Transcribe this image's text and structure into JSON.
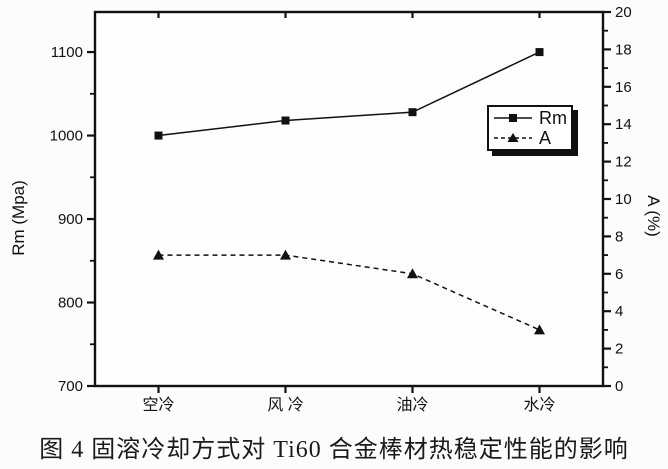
{
  "figure": {
    "caption": "图 4 固溶冷却方式对 Ti60 合金棒材热稳定性能的影响"
  },
  "colors": {
    "foreground": "#111111",
    "background": "#fcfcfc",
    "plot_background": "#fefefe"
  },
  "legend": {
    "entries": [
      {
        "label": "Rm",
        "line": "solid",
        "marker": "square"
      },
      {
        "label": "A",
        "line": "dashed",
        "marker": "triangle"
      }
    ]
  },
  "chart_data": {
    "type": "line",
    "title": "",
    "categories": [
      "空冷",
      "风 冷",
      "油冷",
      "水冷"
    ],
    "series": [
      {
        "name": "Rm",
        "axis": "left",
        "line": "solid",
        "marker": "square",
        "values": [
          1000,
          1018,
          1028,
          1100
        ]
      },
      {
        "name": "A",
        "axis": "right",
        "line": "dashed",
        "marker": "triangle",
        "values": [
          7,
          7,
          6,
          3
        ]
      }
    ],
    "left_axis": {
      "label": "Rm (Mpa)",
      "min": 700,
      "max": 1148,
      "major_ticks": [
        700,
        800,
        900,
        1000,
        1100
      ],
      "minor_ticks": [
        750,
        850,
        950,
        1050
      ]
    },
    "right_axis": {
      "label": "A (%)",
      "min": 0,
      "max": 20,
      "major_ticks": [
        0,
        2,
        4,
        6,
        8,
        10,
        12,
        14,
        16,
        18,
        20
      ],
      "minor_ticks": [
        1,
        3,
        5,
        7,
        9,
        11,
        13,
        15,
        17,
        19
      ]
    },
    "grid": false,
    "legend_position": "middle-right"
  }
}
